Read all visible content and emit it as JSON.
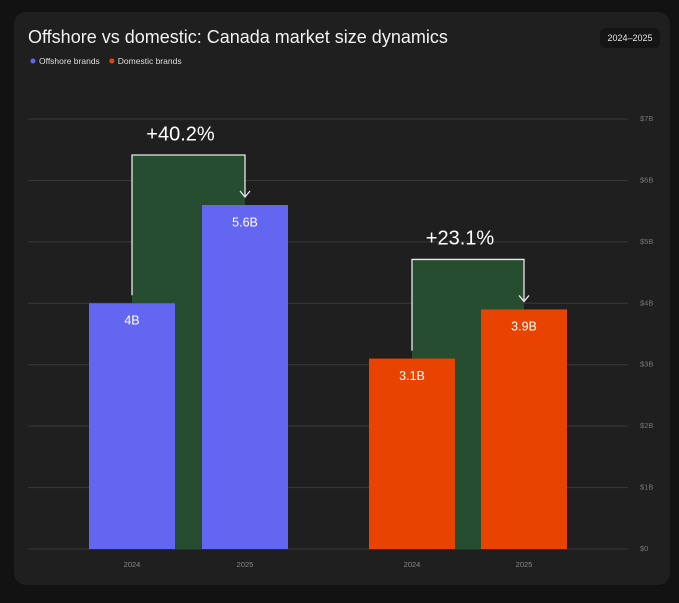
{
  "chart_data": {
    "type": "bar",
    "title": "Offshore vs domestic: Canada market size dynamics",
    "subtitle": "2024–2025",
    "categories": [
      "2024",
      "2025"
    ],
    "series": [
      {
        "name": "Offshore brands",
        "color": "#6366f1",
        "values": [
          4,
          5.6
        ],
        "value_labels": [
          "4B",
          "5.6B"
        ],
        "annotation": "+40.2%"
      },
      {
        "name": "Domestic brands",
        "color": "#e84300",
        "values": [
          3.1,
          3.9
        ],
        "value_labels": [
          "3.1B",
          "3.9B"
        ],
        "annotation": "+23.1%"
      }
    ],
    "ylim": [
      0,
      7
    ],
    "yticks": [
      {
        "value": 0,
        "label": "$0"
      },
      {
        "value": 1,
        "label": "$1B"
      },
      {
        "value": 2,
        "label": "$2B"
      },
      {
        "value": 3,
        "label": "$3B"
      },
      {
        "value": 4,
        "label": "$4B"
      },
      {
        "value": 5,
        "label": "$5B"
      },
      {
        "value": 6,
        "label": "$6B"
      },
      {
        "value": 7,
        "label": "$7B"
      }
    ],
    "grid": true
  }
}
